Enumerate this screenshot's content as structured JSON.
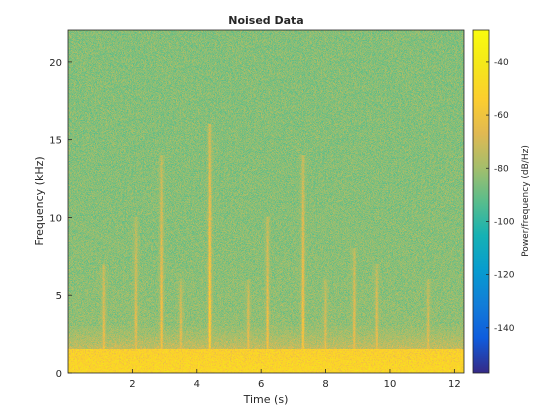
{
  "chart_data": {
    "type": "heatmap",
    "title": "Noised Data",
    "xlabel": "Time (s)",
    "ylabel": "Frequency (kHz)",
    "xlim": [
      0,
      12.3
    ],
    "ylim": [
      0,
      22.05
    ],
    "xticks": [
      2,
      4,
      6,
      8,
      10,
      12
    ],
    "yticks": [
      0,
      5,
      10,
      15,
      20
    ],
    "colorbar": {
      "label": "Power/frequency (dB/Hz)",
      "range": [
        -157,
        -28
      ],
      "ticks": [
        -40,
        -60,
        -80,
        -100,
        -120,
        -140
      ],
      "colormap": "parula"
    },
    "background_level_db": -85,
    "low_frequency_band": {
      "range_khz": [
        0,
        1.5
      ],
      "level_db": -50
    },
    "bursts": [
      {
        "time_s": 1.1,
        "top_khz": 7,
        "level_db": -58
      },
      {
        "time_s": 2.1,
        "top_khz": 10,
        "level_db": -62
      },
      {
        "time_s": 2.9,
        "top_khz": 14,
        "level_db": -58
      },
      {
        "time_s": 3.5,
        "top_khz": 6,
        "level_db": -60
      },
      {
        "time_s": 4.4,
        "top_khz": 16,
        "level_db": -50
      },
      {
        "time_s": 5.6,
        "top_khz": 6,
        "level_db": -60
      },
      {
        "time_s": 6.2,
        "top_khz": 10,
        "level_db": -58
      },
      {
        "time_s": 7.3,
        "top_khz": 14,
        "level_db": -56
      },
      {
        "time_s": 8.0,
        "top_khz": 6,
        "level_db": -62
      },
      {
        "time_s": 8.9,
        "top_khz": 8,
        "level_db": -60
      },
      {
        "time_s": 9.6,
        "top_khz": 7,
        "level_db": -60
      },
      {
        "time_s": 11.2,
        "top_khz": 6,
        "level_db": -62
      }
    ]
  }
}
